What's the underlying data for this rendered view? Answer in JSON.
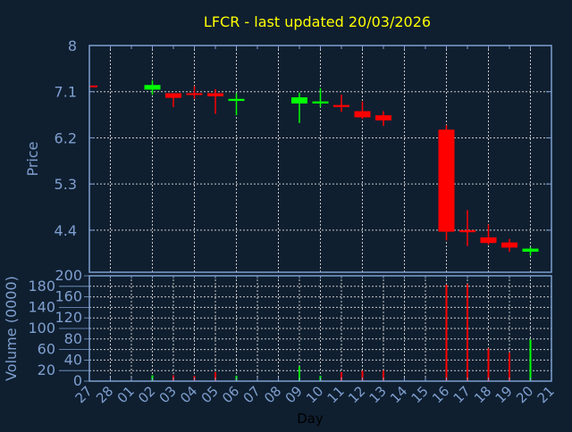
{
  "chart_data": {
    "type": "candlestick",
    "title": "LFCR - last updated 20/03/2026",
    "xlabel": "Day",
    "colors": {
      "up": "#00ff00",
      "down": "#ff0000",
      "axis": "#7f9fcf",
      "title": "#ffff00",
      "background": "#0f1f30",
      "grid": "#c8c8c8"
    },
    "x_ticks": [
      "27",
      "28",
      "01",
      "02",
      "03",
      "04",
      "05",
      "06",
      "07",
      "08",
      "09",
      "10",
      "11",
      "12",
      "13",
      "14",
      "15",
      "16",
      "17",
      "18",
      "19",
      "20",
      "21"
    ],
    "price": {
      "ylabel": "Price",
      "ylim": [
        3.58,
        8.0
      ],
      "y_ticks": [
        "8",
        "7.1",
        "6.2",
        "5.3",
        "4.4"
      ],
      "grid": true,
      "candles": [
        {
          "day": "27",
          "open": 7.22,
          "high": 7.22,
          "low": 7.2,
          "close": 7.2
        },
        {
          "day": "02",
          "open": 7.14,
          "high": 7.32,
          "low": 7.04,
          "close": 7.23
        },
        {
          "day": "03",
          "open": 7.07,
          "high": 7.07,
          "low": 6.8,
          "close": 6.98
        },
        {
          "day": "04",
          "open": 7.07,
          "high": 7.21,
          "low": 6.96,
          "close": 7.04
        },
        {
          "day": "05",
          "open": 7.07,
          "high": 7.15,
          "low": 6.67,
          "close": 7.01
        },
        {
          "day": "06",
          "open": 6.92,
          "high": 7.07,
          "low": 6.64,
          "close": 6.96
        },
        {
          "day": "09",
          "open": 6.87,
          "high": 7.08,
          "low": 6.49,
          "close": 6.99
        },
        {
          "day": "10",
          "open": 6.87,
          "high": 7.17,
          "low": 6.8,
          "close": 6.91
        },
        {
          "day": "11",
          "open": 6.84,
          "high": 7.04,
          "low": 6.71,
          "close": 6.8
        },
        {
          "day": "12",
          "open": 6.72,
          "high": 6.91,
          "low": 6.57,
          "close": 6.6
        },
        {
          "day": "13",
          "open": 6.64,
          "high": 6.72,
          "low": 6.43,
          "close": 6.54
        },
        {
          "day": "16",
          "open": 6.36,
          "high": 6.45,
          "low": 4.2,
          "close": 4.37
        },
        {
          "day": "17",
          "open": 4.4,
          "high": 4.79,
          "low": 4.09,
          "close": 4.36
        },
        {
          "day": "18",
          "open": 4.26,
          "high": 4.51,
          "low": 4.12,
          "close": 4.15
        },
        {
          "day": "19",
          "open": 4.16,
          "high": 4.23,
          "low": 3.98,
          "close": 4.06
        },
        {
          "day": "20",
          "open": 3.98,
          "high": 4.07,
          "low": 3.9,
          "close": 4.04
        }
      ]
    },
    "volume": {
      "ylabel": "Volume (0000)",
      "ylim": [
        0,
        200
      ],
      "y_ticks": [
        "0",
        "20",
        "40",
        "60",
        "80",
        "100",
        "120",
        "140",
        "160",
        "180",
        "200"
      ],
      "grid": true,
      "bars": [
        {
          "day": "02",
          "value": 11,
          "dir": "up"
        },
        {
          "day": "03",
          "value": 11,
          "dir": "down"
        },
        {
          "day": "04",
          "value": 10,
          "dir": "down"
        },
        {
          "day": "05",
          "value": 17,
          "dir": "down"
        },
        {
          "day": "06",
          "value": 10,
          "dir": "up"
        },
        {
          "day": "09",
          "value": 28,
          "dir": "up"
        },
        {
          "day": "10",
          "value": 10,
          "dir": "up"
        },
        {
          "day": "11",
          "value": 17,
          "dir": "down"
        },
        {
          "day": "12",
          "value": 20,
          "dir": "down"
        },
        {
          "day": "13",
          "value": 20,
          "dir": "down"
        },
        {
          "day": "16",
          "value": 183,
          "dir": "down"
        },
        {
          "day": "17",
          "value": 184,
          "dir": "down"
        },
        {
          "day": "18",
          "value": 62,
          "dir": "down"
        },
        {
          "day": "19",
          "value": 54,
          "dir": "down"
        },
        {
          "day": "20",
          "value": 79,
          "dir": "up"
        }
      ]
    }
  }
}
